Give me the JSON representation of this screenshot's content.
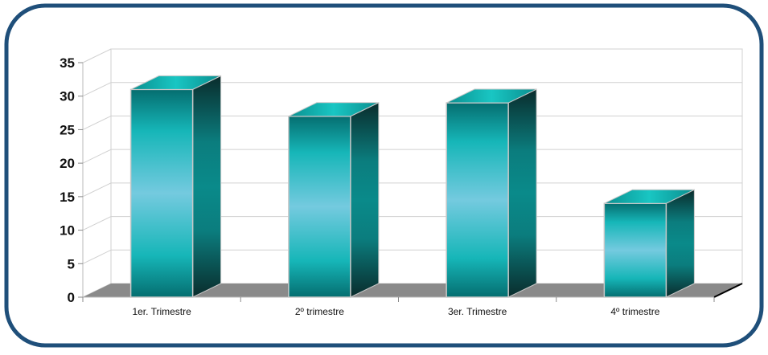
{
  "chart_data": {
    "type": "bar",
    "categories": [
      "1er. Trimestre",
      "2º trimestre",
      "3er. Trimestre",
      "4º trimestre"
    ],
    "values": [
      31,
      27,
      29,
      14
    ],
    "y_ticks": [
      "0",
      "5",
      "10",
      "15",
      "20",
      "25",
      "30",
      "35"
    ],
    "ylim": [
      0,
      35
    ],
    "grid": true,
    "style": "3d-column",
    "title": "",
    "xlabel": "",
    "ylabel": ""
  },
  "colors": {
    "frame": "#1f4f7a",
    "bar_front_dark": "#056e70",
    "bar_front_mid": "#16b6b8",
    "bar_front_light": "#74cadf",
    "bar_side_dark": "#0a2c2c",
    "bar_side_mid": "#0b7d7e",
    "bar_top": "#0fb5b3",
    "floor": "#8a8a8a",
    "grid": "#d0d0d0"
  }
}
